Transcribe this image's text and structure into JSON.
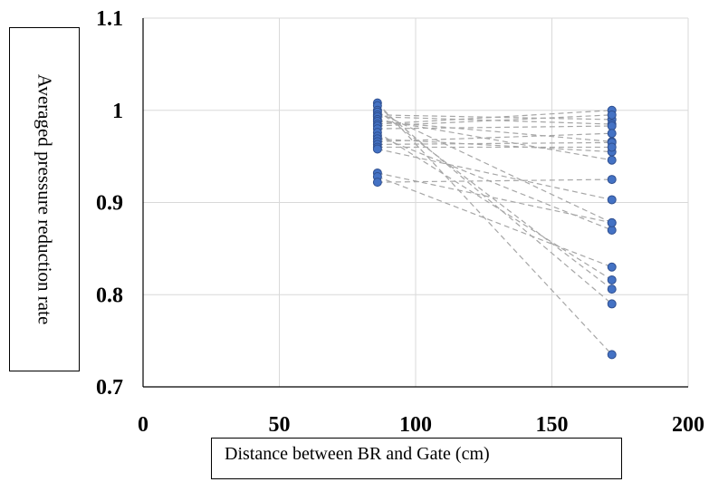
{
  "chart_data": {
    "type": "scatter",
    "xlabel": "Distance between BR and Gate (cm)",
    "ylabel": "Averaged pressure reduction rate",
    "xlim": [
      0,
      200
    ],
    "ylim": [
      0.7,
      1.1
    ],
    "xticks": [
      "0",
      "50",
      "100",
      "150",
      "200"
    ],
    "yticks": [
      "0.7",
      "0.8",
      "0.9",
      "1",
      "1.1"
    ],
    "grid": true,
    "marker_color": "#4472c4",
    "connector_color": "#a6a6a6",
    "x_positions": [
      86,
      172
    ],
    "pairs": [
      [
        1.008,
        0.735
      ],
      [
        1.005,
        0.79
      ],
      [
        1.0,
        0.806
      ],
      [
        0.998,
        0.878
      ],
      [
        0.995,
        0.99
      ],
      [
        0.993,
        0.985
      ],
      [
        0.99,
        0.946
      ],
      [
        0.988,
        0.966
      ],
      [
        0.985,
        1.0
      ],
      [
        0.983,
        0.995
      ],
      [
        0.98,
        0.983
      ],
      [
        0.976,
        0.816
      ],
      [
        0.972,
        0.87
      ],
      [
        0.969,
        0.955
      ],
      [
        0.966,
        0.975
      ],
      [
        0.963,
        0.965
      ],
      [
        0.96,
        0.96
      ],
      [
        0.958,
        0.903
      ],
      [
        0.932,
        0.878
      ],
      [
        0.928,
        0.83
      ],
      [
        0.922,
        0.925
      ]
    ]
  }
}
